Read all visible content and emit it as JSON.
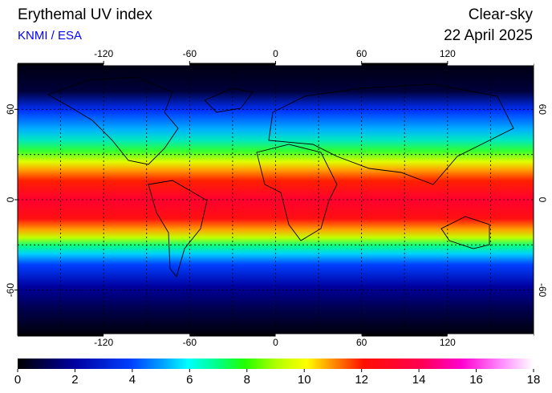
{
  "header": {
    "title": "Erythemal UV index",
    "source": "KNMI / ESA",
    "condition": "Clear-sky",
    "date": "22 April 2025"
  },
  "map": {
    "lon_range": [
      -180,
      180
    ],
    "lat_range": [
      -90,
      90
    ],
    "lon_ticks": [
      -120,
      -60,
      0,
      60,
      120
    ],
    "lat_ticks": [
      60,
      0,
      -60
    ]
  },
  "colorbar": {
    "range": [
      0,
      18
    ],
    "ticks": [
      0,
      2,
      4,
      6,
      8,
      10,
      12,
      14,
      16,
      18
    ]
  }
}
